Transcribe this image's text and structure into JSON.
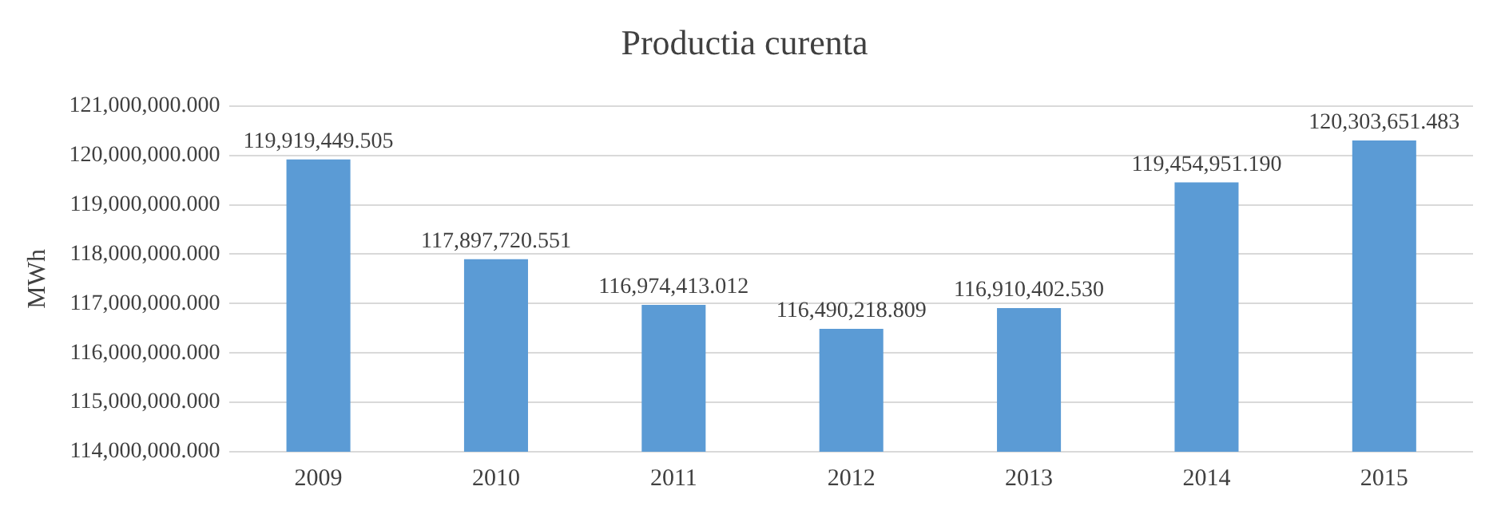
{
  "chart_data": {
    "type": "bar",
    "title": "Productia curenta",
    "ylabel": "MWh",
    "categories": [
      "2009",
      "2010",
      "2011",
      "2012",
      "2013",
      "2014",
      "2015"
    ],
    "values": [
      119919449.505,
      117897720.551,
      116974413.012,
      116490218.809,
      116910402.53,
      119454951.19,
      120303651.483
    ],
    "value_labels": [
      "119,919,449.505",
      "117,897,720.551",
      "116,974,413.012",
      "116,490,218.809",
      "116,910,402.530",
      "119,454,951.190",
      "120,303,651.483"
    ],
    "color": "#5b9bd5",
    "ylim": [
      114000000,
      121000000
    ],
    "yticks": [
      {
        "value": 114000000,
        "label": "114,000,000.000"
      },
      {
        "value": 115000000,
        "label": "115,000,000.000"
      },
      {
        "value": 116000000,
        "label": "116,000,000.000"
      },
      {
        "value": 117000000,
        "label": "117,000,000.000"
      },
      {
        "value": 118000000,
        "label": "118,000,000.000"
      },
      {
        "value": 119000000,
        "label": "119,000,000.000"
      },
      {
        "value": 120000000,
        "label": "120,000,000.000"
      },
      {
        "value": 121000000,
        "label": "121,000,000.000"
      }
    ],
    "grid": "y"
  }
}
